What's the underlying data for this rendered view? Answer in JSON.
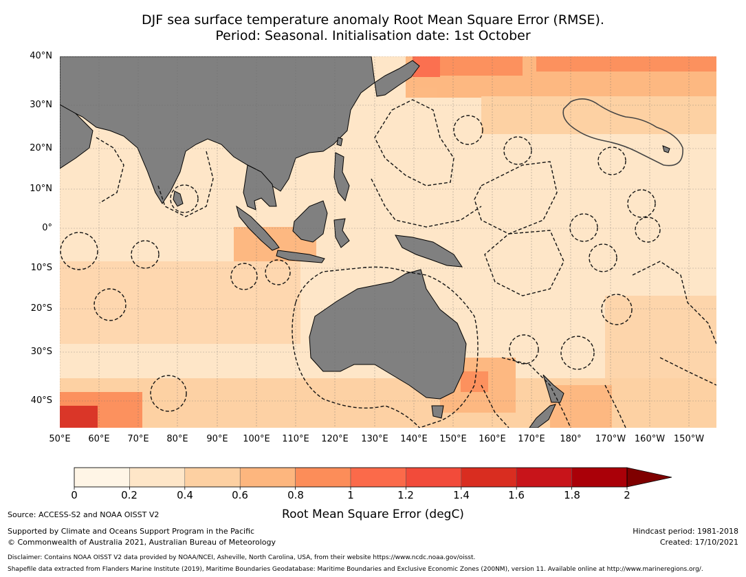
{
  "title": {
    "line1": "DJF sea surface temperature anomaly Root Mean Square Error (RMSE).",
    "line2": "Period: Seasonal. Initialisation date: 1st October"
  },
  "map": {
    "lat_labels": [
      "40°N",
      "30°N",
      "20°N",
      "10°N",
      "0°",
      "10°S",
      "20°S",
      "30°S",
      "40°S"
    ],
    "lon_labels": [
      "50°E",
      "60°E",
      "70°E",
      "80°E",
      "90°E",
      "100°E",
      "110°E",
      "120°E",
      "130°E",
      "140°E",
      "150°E",
      "160°E",
      "170°E",
      "180°",
      "170°W",
      "160°W",
      "150°W"
    ],
    "colors": {
      "ocean_base": "#fee6c8",
      "land": "#808080",
      "grid": "#6b6b6b"
    }
  },
  "colorbar": {
    "ticks": [
      "0",
      "0.2",
      "0.4",
      "0.6",
      "0.8",
      "1",
      "1.2",
      "1.4",
      "1.6",
      "1.8",
      "2"
    ],
    "colors": [
      "#fff5e6",
      "#fee6c8",
      "#fdd0a2",
      "#fdb67e",
      "#fc8d59",
      "#fb6a4a",
      "#f24b3a",
      "#d92d20",
      "#c8141a",
      "#aa0008",
      "#7f0000"
    ],
    "label": "Root Mean Square Error (degC)"
  },
  "footer": {
    "source": "Source: ACCESS-S2 and NOAA OISST V2",
    "supported": "Supported by Climate and Oceans Support Program in the Pacific",
    "copyright": "© Commonwealth of Australia 2021, Australian Bureau of Meteorology",
    "hindcast": "Hindcast period: 1981-2018",
    "created": "Created: 17/10/2021",
    "disclaimer": "Disclaimer: Contains NOAA OISST V2 data provided by NOAA/NCEI, Asheville, North Carolina, USA, from their website https://www.ncdc.noaa.gov/oisst.",
    "shapefile": "Shapefile data extracted from Flanders Marine Institute (2019), Maritime Boundaries Geodatabase: Maritime Boundaries and Exclusive Economic Zones (200NM), version 11. Available online at http://www.marineregions.org/."
  }
}
